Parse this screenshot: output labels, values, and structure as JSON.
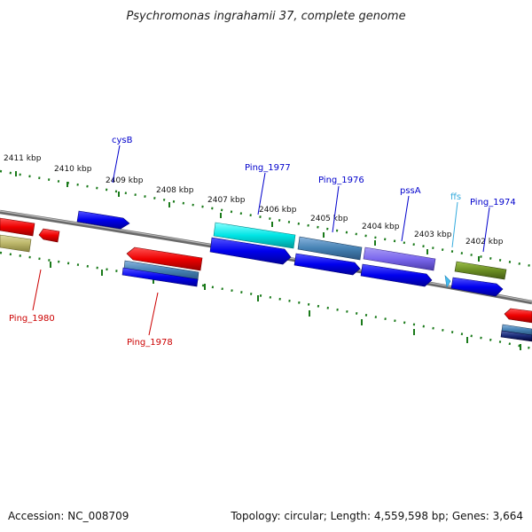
{
  "title": "Psychromonas ingrahamii 37, complete genome",
  "accession": "Accession: NC_008709",
  "summary": "Topology: circular; Length: 4,559,598 bp; Genes: 3,664",
  "ticks": [
    {
      "label": "2411 kbp"
    },
    {
      "label": "2410 kbp"
    },
    {
      "label": "2409 kbp"
    },
    {
      "label": "2408 kbp"
    },
    {
      "label": "2407 kbp"
    },
    {
      "label": "2406 kbp"
    },
    {
      "label": "2405 kbp"
    },
    {
      "label": "2404 kbp"
    },
    {
      "label": "2403 kbp"
    },
    {
      "label": "2402 kbp"
    }
  ],
  "genes_above": [
    {
      "name": "cysB",
      "color": "#0000cc"
    },
    {
      "name": "Ping_1977",
      "color": "#0000cc"
    },
    {
      "name": "Ping_1976",
      "color": "#0000cc"
    },
    {
      "name": "pssA",
      "color": "#0000cc"
    },
    {
      "name": "ffs",
      "color": "#33aadd"
    },
    {
      "name": "Ping_1974",
      "color": "#0000cc"
    }
  ],
  "genes_below": [
    {
      "name": "Ping_1980",
      "color": "#cc0000"
    },
    {
      "name": "Ping_1978",
      "color": "#cc0000"
    }
  ],
  "feature_colors": {
    "cds_forward": "#0000ee",
    "cds_reverse": "#ee0000",
    "trna_rna": "#00dddd",
    "steelblue": "#4682b4",
    "purple": "#7b68ee",
    "olive": "#6b8e23",
    "khaki": "#bdb76b",
    "ffs": "#44bbee",
    "backbone": "#777777",
    "tick": "#1a7a1a"
  }
}
